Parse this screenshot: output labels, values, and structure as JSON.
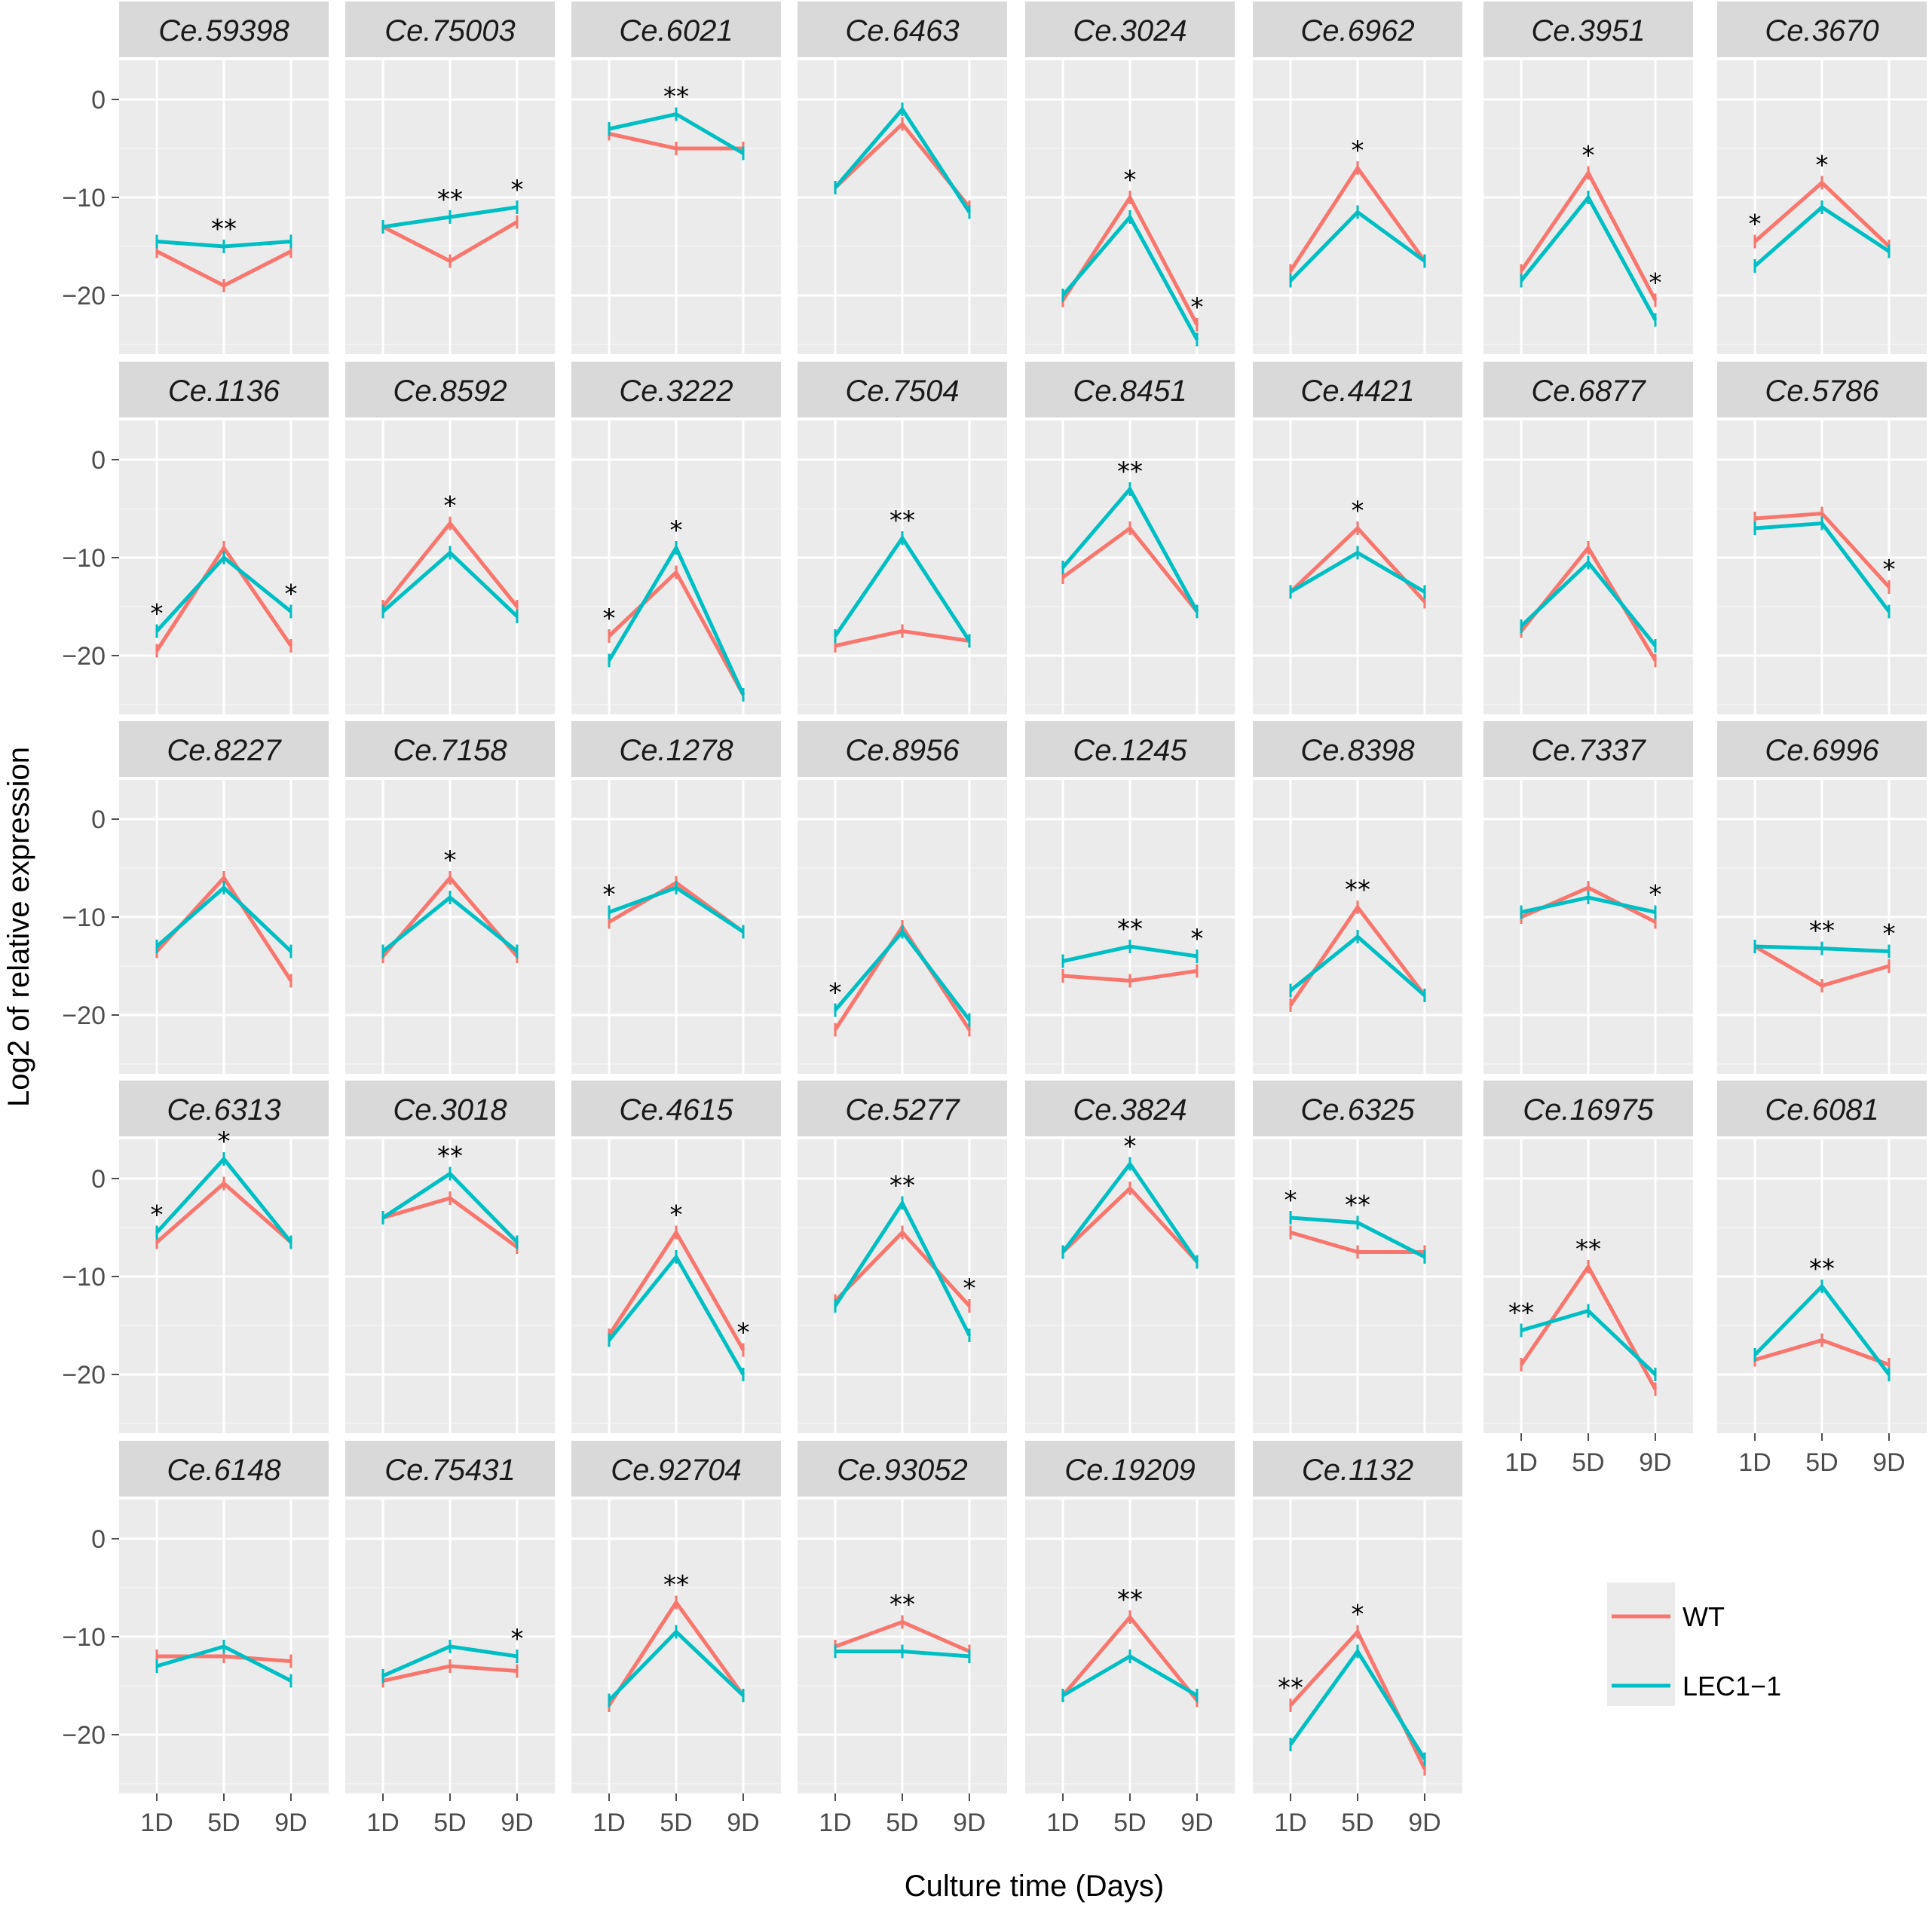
{
  "chart_data": {
    "type": "line",
    "facet_layout": "5 rows x 8 columns",
    "xlabel": "Culture time (Days)",
    "ylabel": "Log2 of relative expression",
    "categories": [
      "1D",
      "5D",
      "9D"
    ],
    "y_ticks": [
      0,
      -10,
      -20
    ],
    "ylim": [
      -26,
      4
    ],
    "legend": [
      {
        "name": "WT",
        "color": "#F8766D"
      },
      {
        "name": "LEC1−1",
        "color": "#00BFC4"
      }
    ],
    "legend_position": "bottom-right",
    "panels": [
      {
        "title": "Ce.59398",
        "wt": [
          -15.5,
          -19,
          -15.5
        ],
        "lec": [
          -14.5,
          -15,
          -14.5
        ],
        "sig": [
          "",
          "**",
          ""
        ]
      },
      {
        "title": "Ce.75003",
        "wt": [
          -13,
          -16.5,
          -12.5
        ],
        "lec": [
          -13,
          -12,
          -11
        ],
        "sig": [
          "",
          "**",
          "*"
        ]
      },
      {
        "title": "Ce.6021",
        "wt": [
          -3.5,
          -5,
          -5
        ],
        "lec": [
          -3,
          -1.5,
          -5.5
        ],
        "sig": [
          "",
          "**",
          ""
        ]
      },
      {
        "title": "Ce.6463",
        "wt": [
          -9,
          -2.5,
          -11
        ],
        "lec": [
          -9,
          -1,
          -11.5
        ],
        "sig": [
          "",
          "",
          ""
        ]
      },
      {
        "title": "Ce.3024",
        "wt": [
          -20.5,
          -10,
          -23
        ],
        "lec": [
          -20,
          -12,
          -24.5
        ],
        "sig": [
          "",
          "*",
          "*"
        ]
      },
      {
        "title": "Ce.6962",
        "wt": [
          -17.5,
          -7,
          -16.5
        ],
        "lec": [
          -18.5,
          -11.5,
          -16.5
        ],
        "sig": [
          "",
          "*",
          ""
        ]
      },
      {
        "title": "Ce.3951",
        "wt": [
          -17.5,
          -7.5,
          -20.5
        ],
        "lec": [
          -18.5,
          -10,
          -22.5
        ],
        "sig": [
          "",
          "*",
          "*"
        ]
      },
      {
        "title": "Ce.3670",
        "wt": [
          -14.5,
          -8.5,
          -15
        ],
        "lec": [
          -17,
          -11,
          -15.5
        ],
        "sig": [
          "*",
          "*",
          ""
        ]
      },
      {
        "title": "Ce.1136",
        "wt": [
          -19.5,
          -9,
          -19
        ],
        "lec": [
          -17.5,
          -10,
          -15.5
        ],
        "sig": [
          "*",
          "",
          "*"
        ]
      },
      {
        "title": "Ce.8592",
        "wt": [
          -15,
          -6.5,
          -15
        ],
        "lec": [
          -15.5,
          -9.5,
          -16
        ],
        "sig": [
          "",
          "*",
          ""
        ]
      },
      {
        "title": "Ce.3222",
        "wt": [
          -18,
          -11.5,
          -24
        ],
        "lec": [
          -20.5,
          -9,
          -24
        ],
        "sig": [
          "*",
          "*",
          ""
        ]
      },
      {
        "title": "Ce.7504",
        "wt": [
          -19,
          -17.5,
          -18.5
        ],
        "lec": [
          -18,
          -8,
          -18.5
        ],
        "sig": [
          "",
          "**",
          ""
        ]
      },
      {
        "title": "Ce.8451",
        "wt": [
          -12,
          -7,
          -15.5
        ],
        "lec": [
          -11,
          -3,
          -15.5
        ],
        "sig": [
          "",
          "**",
          ""
        ]
      },
      {
        "title": "Ce.4421",
        "wt": [
          -13.5,
          -7,
          -14.5
        ],
        "lec": [
          -13.5,
          -9.5,
          -13.5
        ],
        "sig": [
          "",
          "*",
          ""
        ]
      },
      {
        "title": "Ce.6877",
        "wt": [
          -17.5,
          -9,
          -20.5
        ],
        "lec": [
          -17,
          -10.5,
          -19
        ],
        "sig": [
          "",
          "",
          ""
        ]
      },
      {
        "title": "Ce.5786",
        "wt": [
          -6,
          -5.5,
          -13
        ],
        "lec": [
          -7,
          -6.5,
          -15.5
        ],
        "sig": [
          "",
          "",
          "*"
        ]
      },
      {
        "title": "Ce.8227",
        "wt": [
          -13.5,
          -6,
          -16.5
        ],
        "lec": [
          -13,
          -7,
          -13.5
        ],
        "sig": [
          "",
          "",
          ""
        ]
      },
      {
        "title": "Ce.7158",
        "wt": [
          -14,
          -6,
          -14
        ],
        "lec": [
          -13.5,
          -8,
          -13.5
        ],
        "sig": [
          "",
          "*",
          ""
        ]
      },
      {
        "title": "Ce.1278",
        "wt": [
          -10.5,
          -6.5,
          -11.5
        ],
        "lec": [
          -9.5,
          -7,
          -11.5
        ],
        "sig": [
          "*",
          "",
          ""
        ]
      },
      {
        "title": "Ce.8956",
        "wt": [
          -21.5,
          -11,
          -21.5
        ],
        "lec": [
          -19.5,
          -11.5,
          -20.5
        ],
        "sig": [
          "*",
          "",
          ""
        ]
      },
      {
        "title": "Ce.1245",
        "wt": [
          -16,
          -16.5,
          -15.5
        ],
        "lec": [
          -14.5,
          -13,
          -14
        ],
        "sig": [
          "",
          "**",
          "*"
        ]
      },
      {
        "title": "Ce.8398",
        "wt": [
          -19,
          -9,
          -18
        ],
        "lec": [
          -17.5,
          -12,
          -18
        ],
        "sig": [
          "",
          "**",
          ""
        ]
      },
      {
        "title": "Ce.7337",
        "wt": [
          -10,
          -7,
          -10.5
        ],
        "lec": [
          -9.5,
          -8,
          -9.5
        ],
        "sig": [
          "",
          "",
          "*"
        ]
      },
      {
        "title": "Ce.6996",
        "wt": [
          -13,
          -17,
          -15
        ],
        "lec": [
          -13,
          -13.2,
          -13.5
        ],
        "sig": [
          "",
          "**",
          "*"
        ]
      },
      {
        "title": "Ce.6313",
        "wt": [
          -6.5,
          -0.5,
          -6.5
        ],
        "lec": [
          -5.5,
          2,
          -6.5
        ],
        "sig": [
          "*",
          "*",
          ""
        ]
      },
      {
        "title": "Ce.3018",
        "wt": [
          -4,
          -2,
          -7
        ],
        "lec": [
          -4,
          0.5,
          -6.5
        ],
        "sig": [
          "",
          "**",
          ""
        ]
      },
      {
        "title": "Ce.4615",
        "wt": [
          -16,
          -5.5,
          -17.5
        ],
        "lec": [
          -16.5,
          -8,
          -20
        ],
        "sig": [
          "",
          "*",
          "*"
        ]
      },
      {
        "title": "Ce.5277",
        "wt": [
          -12.5,
          -5.5,
          -13
        ],
        "lec": [
          -13,
          -2.5,
          -16
        ],
        "sig": [
          "",
          "**",
          "*"
        ]
      },
      {
        "title": "Ce.3824",
        "wt": [
          -7.5,
          -1,
          -8.5
        ],
        "lec": [
          -7.5,
          1.5,
          -8.5
        ],
        "sig": [
          "",
          "*",
          ""
        ]
      },
      {
        "title": "Ce.6325",
        "wt": [
          -5.5,
          -7.5,
          -7.5
        ],
        "lec": [
          -4,
          -4.5,
          -8
        ],
        "sig": [
          "*",
          "**",
          ""
        ]
      },
      {
        "title": "Ce.16975",
        "wt": [
          -19,
          -9,
          -21.5
        ],
        "lec": [
          -15.5,
          -13.5,
          -20
        ],
        "sig": [
          "**",
          "**",
          ""
        ]
      },
      {
        "title": "Ce.6081",
        "wt": [
          -18.5,
          -16.5,
          -19
        ],
        "lec": [
          -18,
          -11,
          -20
        ],
        "sig": [
          "",
          "**",
          ""
        ]
      },
      {
        "title": "Ce.6148",
        "wt": [
          -12,
          -12,
          -12.5
        ],
        "lec": [
          -13,
          -11,
          -14.5
        ],
        "sig": [
          "",
          "",
          ""
        ]
      },
      {
        "title": "Ce.75431",
        "wt": [
          -14.5,
          -13,
          -13.5
        ],
        "lec": [
          -14,
          -11,
          -12
        ],
        "sig": [
          "",
          "",
          "*"
        ]
      },
      {
        "title": "Ce.92704",
        "wt": [
          -17,
          -6.5,
          -16
        ],
        "lec": [
          -16.5,
          -9.5,
          -16
        ],
        "sig": [
          "",
          "**",
          ""
        ]
      },
      {
        "title": "Ce.93052",
        "wt": [
          -11,
          -8.5,
          -11.5
        ],
        "lec": [
          -11.5,
          -11.5,
          -12
        ],
        "sig": [
          "",
          "**",
          ""
        ]
      },
      {
        "title": "Ce.19209",
        "wt": [
          -16,
          -8,
          -16.5
        ],
        "lec": [
          -16,
          -12,
          -16
        ],
        "sig": [
          "",
          "**",
          ""
        ]
      },
      {
        "title": "Ce.1132",
        "wt": [
          -17,
          -9.5,
          -23.5
        ],
        "lec": [
          -21,
          -11.5,
          -22.5
        ],
        "sig": [
          "**",
          "*",
          ""
        ]
      }
    ]
  }
}
